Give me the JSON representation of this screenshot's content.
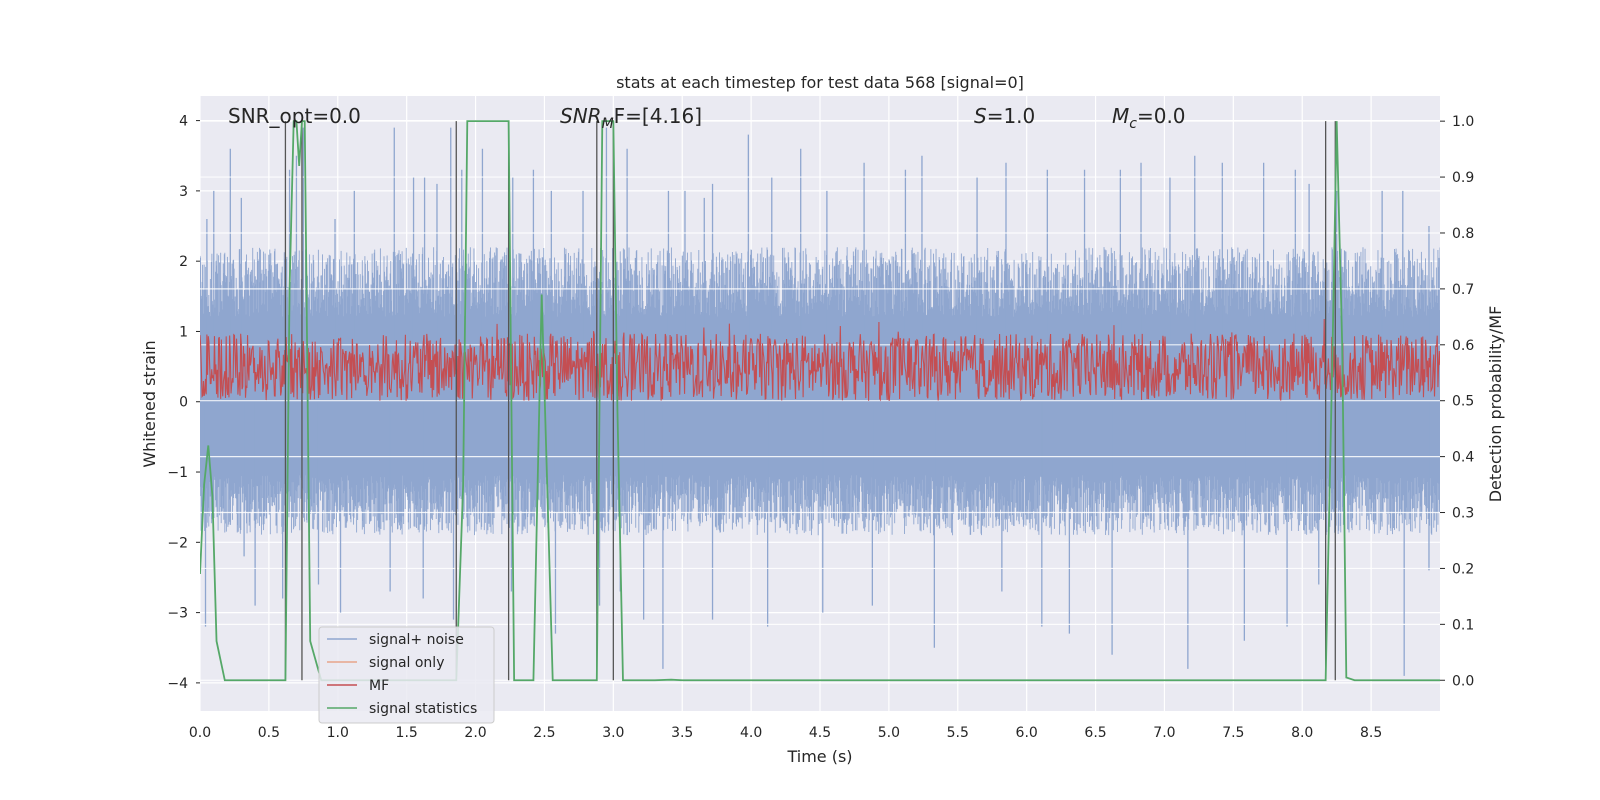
{
  "chart_data": {
    "type": "line",
    "title": "stats at each timestep for test data 568 [signal=0]",
    "xlabel": "Time (s)",
    "ylabel": "Whitened strain",
    "y2label": "Detection probability/MF",
    "xlim": [
      0.0,
      9.0
    ],
    "ylim": [
      -4.4,
      4.35
    ],
    "y2lim": [
      -0.055,
      1.045
    ],
    "xticks": [
      "0.0",
      "0.5",
      "1.0",
      "1.5",
      "2.0",
      "2.5",
      "3.0",
      "3.5",
      "4.0",
      "4.5",
      "5.0",
      "5.5",
      "6.0",
      "6.5",
      "7.0",
      "7.5",
      "8.0",
      "8.5"
    ],
    "yticks": [
      "4",
      "3",
      "2",
      "1",
      "0",
      "−1",
      "−2",
      "−3",
      "−4"
    ],
    "y2ticks": [
      "1.0",
      "0.9",
      "0.8",
      "0.7",
      "0.6",
      "0.5",
      "0.4",
      "0.3",
      "0.2",
      "0.1",
      "0.0"
    ],
    "grid": true,
    "legend_position": "lower-left",
    "annotations": {
      "snr_opt": "SNR_opt=0.0",
      "snr_mf": "F=[4.16]",
      "s": "=1.0",
      "mc": "=0.0"
    },
    "series": [
      {
        "name": "signal+ noise",
        "axis": "left",
        "color": "#8fa6cf",
        "envelope": {
          "upper_typical": 2.2,
          "lower_typical": -1.9,
          "upper_max": 4.0,
          "lower_min": -3.85
        },
        "peaks": [
          [
            0.05,
            2.6
          ],
          [
            0.1,
            3.0
          ],
          [
            0.22,
            3.6
          ],
          [
            0.3,
            2.9
          ],
          [
            0.65,
            3.3
          ],
          [
            0.7,
            3.5
          ],
          [
            0.75,
            3.9
          ],
          [
            0.98,
            2.6
          ],
          [
            1.12,
            3.0
          ],
          [
            1.41,
            3.9
          ],
          [
            1.55,
            3.2
          ],
          [
            1.63,
            3.2
          ],
          [
            1.72,
            3.1
          ],
          [
            1.82,
            3.9
          ],
          [
            1.9,
            3.3
          ],
          [
            2.05,
            3.6
          ],
          [
            2.27,
            3.2
          ],
          [
            2.42,
            3.3
          ],
          [
            2.55,
            3.0
          ],
          [
            2.78,
            3.0
          ],
          [
            2.95,
            3.9
          ],
          [
            3.1,
            3.6
          ],
          [
            3.4,
            3.0
          ],
          [
            3.52,
            3.0
          ],
          [
            3.66,
            2.9
          ],
          [
            3.72,
            3.1
          ],
          [
            3.98,
            3.8
          ],
          [
            4.15,
            3.2
          ],
          [
            4.36,
            3.6
          ],
          [
            4.55,
            3.0
          ],
          [
            4.82,
            3.4
          ],
          [
            5.12,
            3.3
          ],
          [
            5.24,
            3.5
          ],
          [
            5.64,
            3.2
          ],
          [
            5.85,
            3.4
          ],
          [
            6.15,
            3.3
          ],
          [
            6.42,
            3.3
          ],
          [
            6.68,
            3.3
          ],
          [
            6.83,
            3.4
          ],
          [
            7.04,
            3.2
          ],
          [
            7.22,
            3.5
          ],
          [
            7.42,
            3.4
          ],
          [
            7.72,
            3.4
          ],
          [
            7.95,
            3.3
          ],
          [
            8.05,
            3.1
          ],
          [
            8.25,
            3.0
          ],
          [
            8.58,
            3.0
          ],
          [
            8.73,
            3.0
          ],
          [
            8.92,
            2.5
          ]
        ],
        "troughs": [
          [
            0.04,
            -3.2
          ],
          [
            0.32,
            -2.2
          ],
          [
            0.4,
            -2.9
          ],
          [
            0.6,
            -2.8
          ],
          [
            0.86,
            -2.6
          ],
          [
            1.02,
            -3.0
          ],
          [
            1.38,
            -2.7
          ],
          [
            1.62,
            -2.8
          ],
          [
            1.84,
            -3.1
          ],
          [
            2.26,
            -2.7
          ],
          [
            2.58,
            -3.3
          ],
          [
            2.9,
            -2.9
          ],
          [
            3.05,
            -2.7
          ],
          [
            3.22,
            -3.1
          ],
          [
            3.36,
            -3.8
          ],
          [
            3.72,
            -3.1
          ],
          [
            4.12,
            -3.2
          ],
          [
            4.52,
            -3.0
          ],
          [
            4.88,
            -2.9
          ],
          [
            5.33,
            -3.5
          ],
          [
            5.82,
            -2.7
          ],
          [
            6.11,
            -3.2
          ],
          [
            6.31,
            -3.3
          ],
          [
            6.62,
            -3.6
          ],
          [
            7.17,
            -3.8
          ],
          [
            7.58,
            -3.4
          ],
          [
            7.89,
            -3.2
          ],
          [
            8.12,
            -2.6
          ],
          [
            8.74,
            -3.9
          ],
          [
            8.92,
            -2.4
          ]
        ]
      },
      {
        "name": "signal only",
        "axis": "left",
        "color": "#e8a48a",
        "values": []
      },
      {
        "name": "MF",
        "axis": "right",
        "color": "#c44e52",
        "band": {
          "base": 0.5,
          "mean": 0.55,
          "top": 0.62,
          "max": 0.65
        }
      },
      {
        "name": "signal statistics",
        "axis": "right",
        "color": "#55a868",
        "x": [
          0.0,
          0.03,
          0.06,
          0.09,
          0.12,
          0.18,
          0.62,
          0.65,
          0.68,
          0.7,
          0.72,
          0.74,
          0.76,
          0.8,
          0.88,
          1.86,
          1.91,
          1.94,
          1.97,
          2.0,
          2.24,
          2.28,
          2.32,
          2.42,
          2.48,
          2.52,
          2.56,
          2.6,
          2.88,
          2.92,
          2.95,
          3.0,
          3.03,
          3.07,
          3.3,
          3.42,
          3.5,
          8.17,
          8.22,
          8.25,
          8.29,
          8.32,
          8.38,
          9.0
        ],
        "y": [
          0.19,
          0.35,
          0.42,
          0.33,
          0.07,
          0.0,
          0.0,
          0.7,
          1.0,
          1.0,
          0.92,
          1.0,
          1.0,
          0.07,
          0.0,
          0.0,
          0.35,
          1.0,
          1.0,
          1.0,
          1.0,
          0.0,
          0.0,
          0.0,
          0.69,
          0.35,
          0.0,
          0.0,
          0.0,
          1.0,
          1.0,
          1.0,
          0.48,
          0.0,
          0.0,
          0.001,
          0.0,
          0.0,
          0.59,
          1.0,
          0.6,
          0.005,
          0.0,
          0.0
        ]
      }
    ],
    "vlines": [
      0.62,
      0.74,
      1.86,
      2.24,
      2.88,
      3.0,
      8.17,
      8.24
    ]
  }
}
